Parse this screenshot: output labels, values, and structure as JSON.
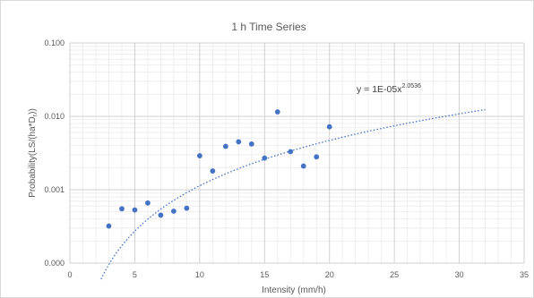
{
  "chart_data": {
    "type": "scatter",
    "title": "1 h Time Series",
    "xlabel": "Intensity (mm/h)",
    "ylabel": "Probability(LS/(ha*D",
    "ylabel_sub": "r",
    "ylabel_tail": "))",
    "xlim": [
      0,
      35
    ],
    "ylim": [
      0.0001,
      0.1
    ],
    "yscale": "log",
    "x_ticks": [
      0,
      5,
      10,
      15,
      20,
      25,
      30,
      35
    ],
    "x_tick_labels": [
      "0",
      "5",
      "10",
      "15",
      "20",
      "25",
      "30",
      "35"
    ],
    "y_ticks": [
      0.0001,
      0.001,
      0.01,
      0.1
    ],
    "y_tick_labels": [
      "0.000",
      "0.001",
      "0.010",
      "0.100"
    ],
    "grid": true,
    "minor_grid": true,
    "legend": "none",
    "point_color": "#4472C4",
    "trend_color": "#4472C4",
    "points": [
      {
        "x": 3,
        "y": 0.00032
      },
      {
        "x": 4,
        "y": 0.00055
      },
      {
        "x": 5,
        "y": 0.00053
      },
      {
        "x": 6,
        "y": 0.00066
      },
      {
        "x": 7,
        "y": 0.00045
      },
      {
        "x": 8,
        "y": 0.00051
      },
      {
        "x": 9,
        "y": 0.00056
      },
      {
        "x": 10,
        "y": 0.0029
      },
      {
        "x": 11,
        "y": 0.0018
      },
      {
        "x": 12,
        "y": 0.0039
      },
      {
        "x": 13,
        "y": 0.0045
      },
      {
        "x": 14,
        "y": 0.0042
      },
      {
        "x": 15,
        "y": 0.0027
      },
      {
        "x": 16,
        "y": 0.0115
      },
      {
        "x": 17,
        "y": 0.0033
      },
      {
        "x": 18,
        "y": 0.0021
      },
      {
        "x": 19,
        "y": 0.0028
      },
      {
        "x": 20,
        "y": 0.0072
      }
    ],
    "trendline": {
      "type": "power",
      "coefficient": 1e-05,
      "exponent": 2.0536,
      "x_range": [
        2.4,
        32
      ],
      "equation_prefix": "y = 1E-05x",
      "equation_exponent": "2.0536"
    }
  }
}
